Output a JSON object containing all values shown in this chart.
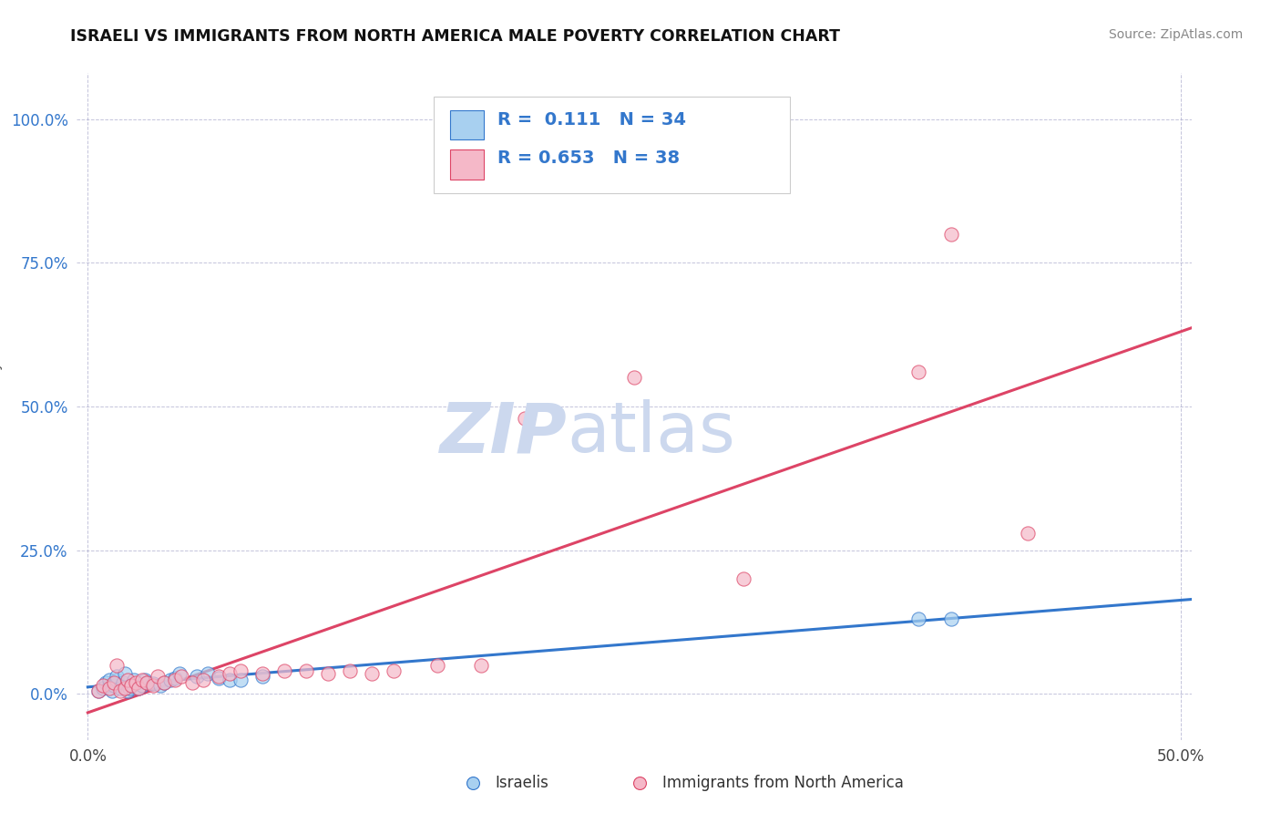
{
  "title": "ISRAELI VS IMMIGRANTS FROM NORTH AMERICA MALE POVERTY CORRELATION CHART",
  "source": "Source: ZipAtlas.com",
  "ylabel": "Male Poverty",
  "xlim": [
    -0.005,
    0.505
  ],
  "ylim": [
    -0.08,
    1.08
  ],
  "xtick_labels": [
    "0.0%",
    "50.0%"
  ],
  "ytick_labels": [
    "0.0%",
    "25.0%",
    "50.0%",
    "75.0%",
    "100.0%"
  ],
  "ytick_values": [
    0.0,
    0.25,
    0.5,
    0.75,
    1.0
  ],
  "xtick_values": [
    0.0,
    0.5
  ],
  "legend_R1": "0.111",
  "legend_N1": "34",
  "legend_R2": "0.653",
  "legend_N2": "38",
  "color_israeli": "#a8d0f0",
  "color_immigrant": "#f5b8c8",
  "color_line_israeli": "#3377cc",
  "color_line_immigrant": "#dd4466",
  "watermark_color": "#ccd8ee",
  "israelis_x": [
    0.005,
    0.007,
    0.008,
    0.01,
    0.01,
    0.011,
    0.012,
    0.013,
    0.013,
    0.015,
    0.016,
    0.017,
    0.018,
    0.019,
    0.02,
    0.021,
    0.023,
    0.025,
    0.026,
    0.027,
    0.03,
    0.033,
    0.035,
    0.038,
    0.04,
    0.042,
    0.05,
    0.055,
    0.06,
    0.065,
    0.07,
    0.08,
    0.38,
    0.395
  ],
  "israelis_y": [
    0.005,
    0.01,
    0.02,
    0.015,
    0.025,
    0.005,
    0.015,
    0.025,
    0.03,
    0.01,
    0.02,
    0.035,
    0.005,
    0.01,
    0.015,
    0.025,
    0.01,
    0.015,
    0.025,
    0.02,
    0.018,
    0.015,
    0.02,
    0.025,
    0.028,
    0.035,
    0.03,
    0.035,
    0.028,
    0.025,
    0.025,
    0.03,
    0.13,
    0.13
  ],
  "immigrants_x": [
    0.005,
    0.007,
    0.01,
    0.012,
    0.013,
    0.015,
    0.017,
    0.018,
    0.02,
    0.022,
    0.023,
    0.025,
    0.027,
    0.03,
    0.032,
    0.035,
    0.04,
    0.043,
    0.048,
    0.053,
    0.06,
    0.065,
    0.07,
    0.08,
    0.09,
    0.1,
    0.11,
    0.12,
    0.13,
    0.14,
    0.16,
    0.18,
    0.2,
    0.25,
    0.3,
    0.38,
    0.395,
    0.43
  ],
  "immigrants_y": [
    0.005,
    0.015,
    0.01,
    0.02,
    0.05,
    0.005,
    0.01,
    0.025,
    0.015,
    0.02,
    0.01,
    0.025,
    0.02,
    0.015,
    0.03,
    0.02,
    0.025,
    0.03,
    0.02,
    0.025,
    0.03,
    0.035,
    0.04,
    0.035,
    0.04,
    0.04,
    0.035,
    0.04,
    0.035,
    0.04,
    0.05,
    0.05,
    0.48,
    0.55,
    0.2,
    0.56,
    0.8,
    0.28
  ]
}
